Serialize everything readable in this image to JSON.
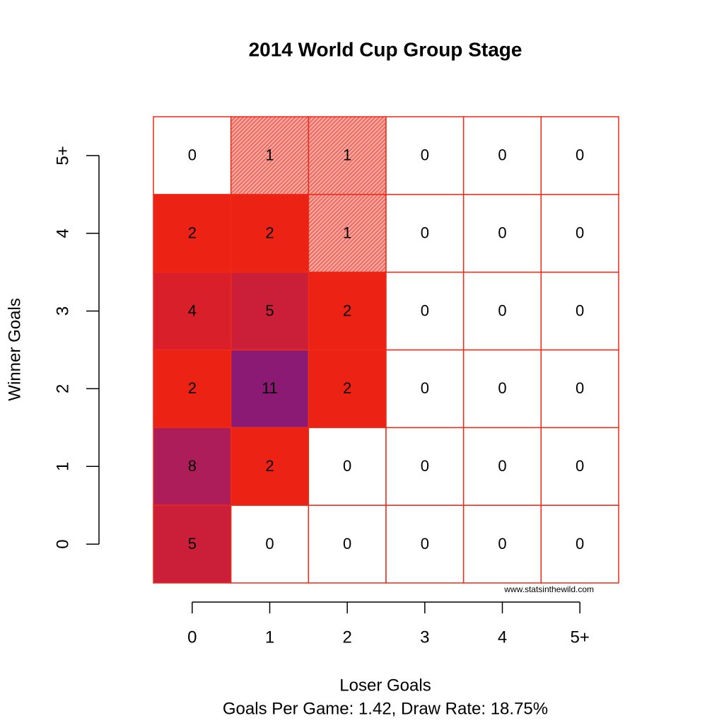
{
  "chart_data": {
    "type": "heatmap",
    "title": "2014 World Cup Group Stage",
    "x_label": "Loser Goals",
    "y_label": "Winner Goals",
    "subtitle": "Goals Per Game: 1.42, Draw Rate: 18.75%",
    "credit": "www.statsinthewild.com",
    "x_categories": [
      "0",
      "1",
      "2",
      "3",
      "4",
      "5+"
    ],
    "y_categories": [
      "0",
      "1",
      "2",
      "3",
      "4",
      "5+"
    ],
    "values": [
      [
        5,
        0,
        0,
        0,
        0,
        0
      ],
      [
        8,
        2,
        0,
        0,
        0,
        0
      ],
      [
        2,
        11,
        2,
        0,
        0,
        0
      ],
      [
        4,
        5,
        2,
        0,
        0,
        0
      ],
      [
        2,
        2,
        1,
        0,
        0,
        0
      ],
      [
        0,
        1,
        1,
        0,
        0,
        0
      ]
    ],
    "border_color": "#ee2a1a",
    "color_scale": [
      {
        "value": 0,
        "color": "#ffffff"
      },
      {
        "value": 1,
        "color": "#ee2216",
        "hatch": true
      },
      {
        "value": 2,
        "color": "#ec2314"
      },
      {
        "value": 4,
        "color": "#d81f2a"
      },
      {
        "value": 5,
        "color": "#cb1e38"
      },
      {
        "value": 8,
        "color": "#ad1d5a"
      },
      {
        "value": 11,
        "color": "#8b1a74"
      }
    ]
  }
}
